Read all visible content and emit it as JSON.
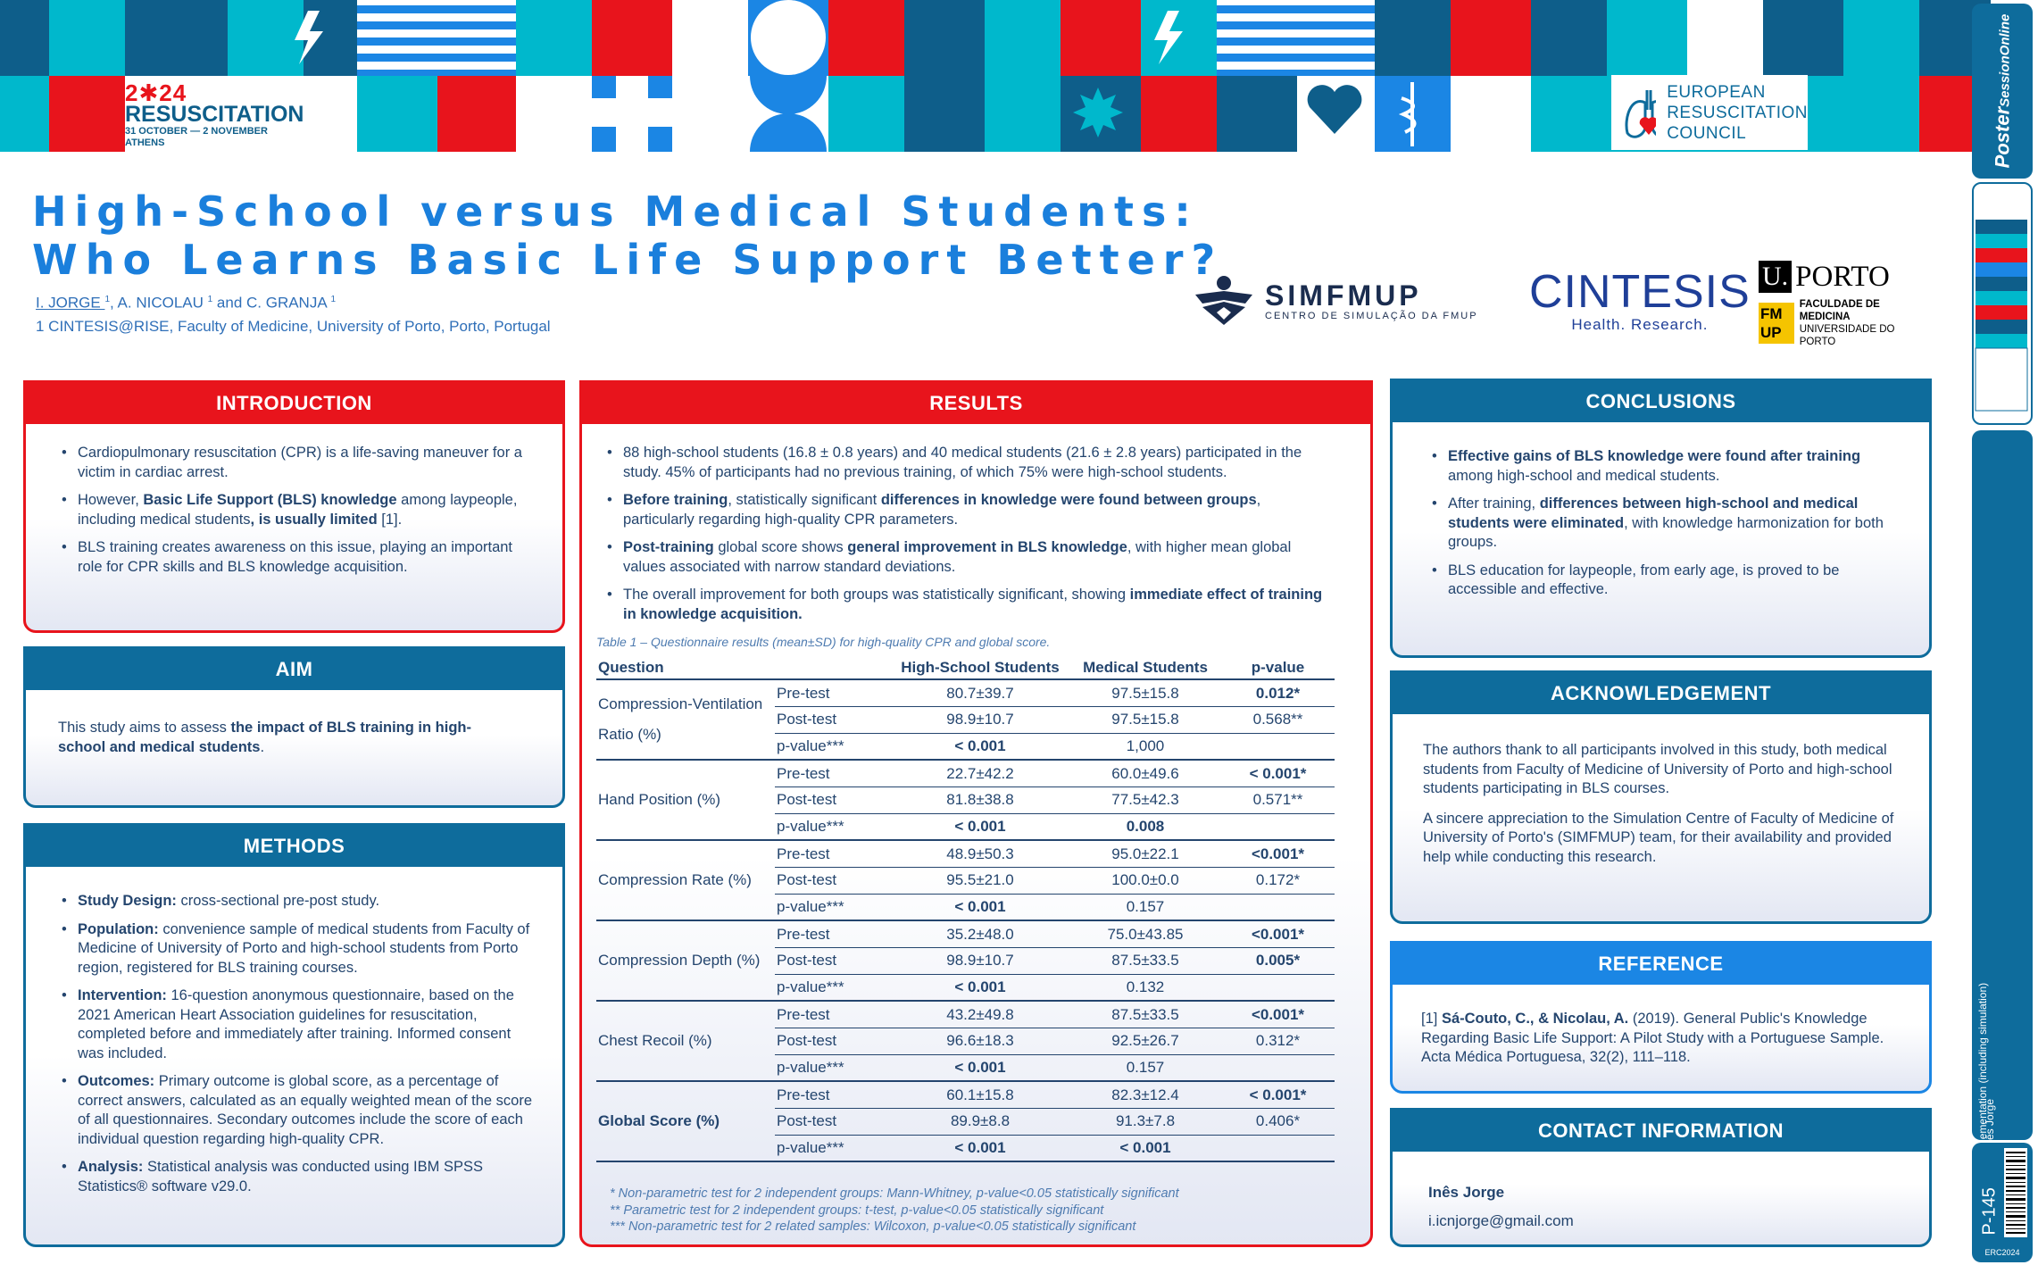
{
  "banner": {
    "event_line1": "2✱24",
    "event_line2": "RESUSCITATION",
    "event_line3": "31 OCTOBER — 2 NOVEMBER",
    "event_line4": "ATHENS",
    "erc_line1": "EUROPEAN",
    "erc_line2": "RESUSCITATION",
    "erc_line3": "COUNCIL",
    "colors": {
      "navy": "#0e5e8a",
      "teal": "#00b8cc",
      "red": "#e8141c",
      "blue": "#1b86e4"
    }
  },
  "title": {
    "line1": "High-School versus Medical Students:",
    "line2": "Who Learns Basic Life Support Better?"
  },
  "authors": {
    "first_author": "I. JORGE ",
    "sup1": "1",
    "sep1": ", A. NICOLAU ",
    "sup2": "1",
    "sep2": " and C. GRANJA ",
    "sup3": "1",
    "affiliation": "1 CINTESIS@RISE, Faculty of Medicine, University of Porto, Porto, Portugal"
  },
  "logos": {
    "simfmup_name": "SIMFMUP",
    "simfmup_sub": "CENTRO DE SIMULAÇÃO DA FMUP",
    "cintesis_name": "CINTESIS",
    "cintesis_sub": "Health. Research.",
    "uporto_u": "U.",
    "uporto_name": "PORTO",
    "fmup_mark_1": "FM",
    "fmup_mark_2": "UP",
    "fmup_text1": "FACULDADE DE MEDICINA",
    "fmup_text2": "UNIVERSIDADE DO PORTO"
  },
  "introduction": {
    "heading": "INTRODUCTION",
    "b1": "Cardiopulmonary resuscitation (CPR) is a life-saving maneuver for a victim in cardiac arrest.",
    "b2_pre": "However, ",
    "b2_bold": "Basic Life Support (BLS) knowledge",
    "b2_mid": " among laypeople, including medical students",
    "b2_bold2": ", is usually limited",
    "b2_post": " [1].",
    "b3": "BLS training creates awareness on this issue, playing an important role for CPR skills and BLS knowledge acquisition."
  },
  "aim": {
    "heading": "AIM",
    "pre": "This study aims to assess ",
    "bold": "the impact of BLS training in high-school and medical students",
    "post": "."
  },
  "methods": {
    "heading": "METHODS",
    "b1_label": "Study Design:",
    "b1": " cross-sectional pre-post study.",
    "b2_label": "Population:",
    "b2": " convenience sample of medical students from Faculty of Medicine of University of Porto and high-school students from Porto region, registered for BLS training courses.",
    "b3_label": "Intervention:",
    "b3": " 16-question anonymous questionnaire, based on the 2021 American Heart Association guidelines for resuscitation, completed before and immediately after training. Informed consent was included.",
    "b4_label": "Outcomes:",
    "b4": " Primary outcome is global score, as a percentage of correct answers, calculated as an equally weighted mean of the score of all questionnaires. Secondary outcomes include the score of each individual question regarding high-quality CPR.",
    "b5_label": " Analysis:",
    "b5": " Statistical analysis was conducted using IBM SPSS Statistics® software v29.0."
  },
  "results": {
    "heading": "RESULTS",
    "b1": "88 high-school students (16.8 ± 0.8 years) and 40 medical students (21.6 ± 2.8 years) participated in the study. 45% of participants had no previous training, of which 75% were high-school students.",
    "b2_bold": "Before training",
    "b2_mid": ", statistically significant ",
    "b2_bold2": "differences in knowledge were found between groups",
    "b2_post": ", particularly regarding high-quality CPR parameters.",
    "b3_bold": "Post-training",
    "b3_mid": " global score shows ",
    "b3_bold2": "general improvement in BLS knowledge",
    "b3_post": ", with higher mean global values associated with narrow standard deviations.",
    "b4_pre": "The overall improvement for both groups was statistically significant, showing ",
    "b4_bold": "immediate effect of training in knowledge acquisition.",
    "table_caption": "Table 1 – Questionnaire results (mean±SD) for high-quality CPR and global score.",
    "table_headers": [
      "Question",
      "",
      "High-School Students",
      "Medical Students",
      "p-value"
    ],
    "groups": [
      {
        "question": "Compression-Ventilation Ratio (%)",
        "rows": [
          [
            "Pre-test",
            "80.7±39.7",
            "97.5±15.8",
            "0.012*"
          ],
          [
            "Post-test",
            "98.9±10.7",
            "97.5±15.8",
            "0.568**"
          ],
          [
            "p-value***",
            "< 0.001",
            "1,000",
            ""
          ]
        ]
      },
      {
        "question": "Hand Position (%)",
        "rows": [
          [
            "Pre-test",
            "22.7±42.2",
            "60.0±49.6",
            "< 0.001*"
          ],
          [
            "Post-test",
            "81.8±38.8",
            "77.5±42.3",
            "0.571**"
          ],
          [
            "p-value***",
            "< 0.001",
            "0.008",
            ""
          ]
        ]
      },
      {
        "question": "Compression Rate (%)",
        "rows": [
          [
            "Pre-test",
            "48.9±50.3",
            "95.0±22.1",
            "<0.001*"
          ],
          [
            "Post-test",
            "95.5±21.0",
            "100.0±0.0",
            "0.172*"
          ],
          [
            "p-value***",
            "< 0.001",
            "0.157",
            ""
          ]
        ]
      },
      {
        "question": "Compression Depth (%)",
        "rows": [
          [
            "Pre-test",
            "35.2±48.0",
            "75.0±43.85",
            "<0.001*"
          ],
          [
            "Post-test",
            "98.9±10.7",
            "87.5±33.5",
            "0.005*"
          ],
          [
            "p-value***",
            "< 0.001",
            "0.132",
            ""
          ]
        ]
      },
      {
        "question": "Chest Recoil (%)",
        "rows": [
          [
            "Pre-test",
            "43.2±49.8",
            "87.5±33.5",
            "<0.001*"
          ],
          [
            "Post-test",
            "96.6±18.3",
            "92.5±26.7",
            "0.312*"
          ],
          [
            "p-value***",
            "< 0.001",
            "0.157",
            ""
          ]
        ]
      },
      {
        "question": "Global Score (%)",
        "rows": [
          [
            "Pre-test",
            "60.1±15.8",
            "82.3±12.4",
            "< 0.001*"
          ],
          [
            "Post-test",
            "89.9±8.8",
            "91.3±7.8",
            "0.406*"
          ],
          [
            "p-value***",
            "< 0.001",
            "< 0.001",
            ""
          ]
        ]
      }
    ],
    "footnote1": "* Non-parametric test for 2 independent groups: Mann-Whitney, p-value<0.05 statistically significant",
    "footnote2": "** Parametric test for 2 independent groups: t-test, p-value<0.05 statistically significant",
    "footnote3": "*** Non-parametric test for 2 related samples: Wilcoxon, p-value<0.05 statistically significant"
  },
  "conclusions": {
    "heading": "CONCLUSIONS",
    "b1_bold": "Effective gains of BLS knowledge were found after training",
    "b1_post": " among high-school and medical students.",
    "b2_pre": "After training, ",
    "b2_bold": "differences between high-school and medical students were eliminated",
    "b2_post": ", with knowledge harmonization for both groups.",
    "b3": "BLS education for laypeople, from early age, is proved to be accessible and effective."
  },
  "acknowledgement": {
    "heading": "ACKNOWLEDGEMENT",
    "p1": "The authors thank to all participants involved in this study, both medical students from Faculty of Medicine of University of Porto and high-school students participating in BLS courses.",
    "p2": "A sincere appreciation to the Simulation Centre of Faculty of Medicine of University of Porto's (SIMFMUP) team, for their availability and provided help while conducting this research."
  },
  "reference": {
    "heading": "REFERENCE",
    "num": "[1] ",
    "authors": "Sá-Couto, C., & Nicolau, A.",
    "text": " (2019). General Public's Knowledge Regarding Basic Life Support: A Pilot Study with a Portuguese Sample. Acta Médica Portuguesa, 32(2), 111–118."
  },
  "contact": {
    "heading": "CONTACT INFORMATION",
    "name": "Inês Jorge",
    "email": "i.icnjorge@gmail.com"
  },
  "sidebar": {
    "brand1": "Poster",
    "brand2": "SessionOnline",
    "category": "Education and Implementation (including simulation)",
    "presenter": "Inês Jorge",
    "poster_id": "P-145",
    "event_code": "ERC2024"
  }
}
